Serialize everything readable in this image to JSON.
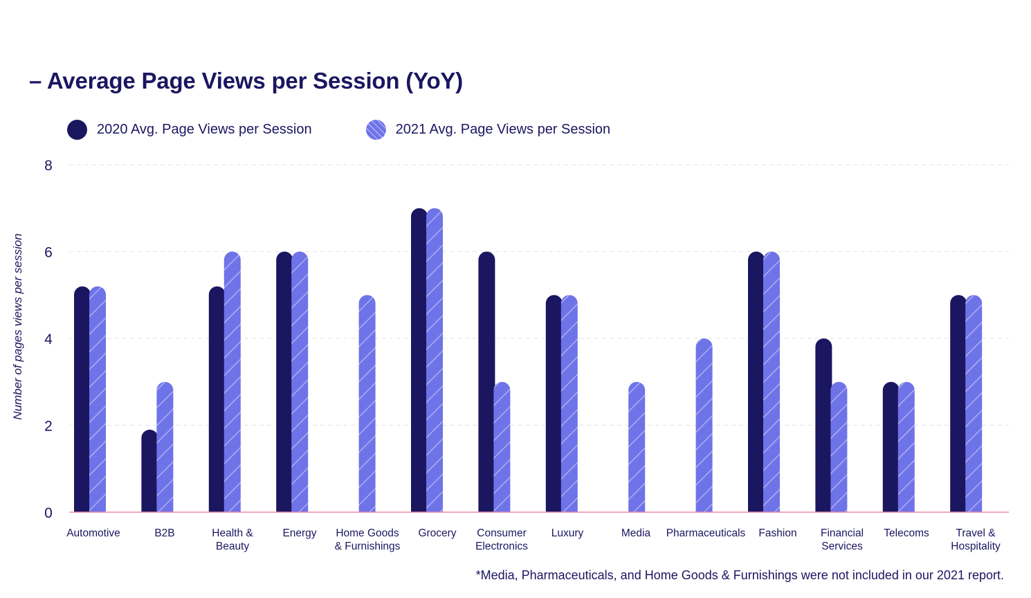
{
  "chart_data": {
    "type": "bar",
    "title": "– Average Page Views per Session (YoY)",
    "ylabel": "Number of pages views per session",
    "xlabel": "",
    "ylim": [
      0,
      8
    ],
    "yticks": [
      0,
      2,
      4,
      6,
      8
    ],
    "categories": [
      "Automotive",
      "B2B",
      "Health & Beauty",
      "Energy",
      "Home Goods & Furnishings",
      "Grocery",
      "Consumer Electronics",
      "Luxury",
      "Media",
      "Pharmaceuticals",
      "Fashion",
      "Financial Services",
      "Telecoms",
      "Travel & Hospitality"
    ],
    "category_label_lines": [
      [
        "Automotive"
      ],
      [
        "B2B"
      ],
      [
        "Health &",
        "Beauty"
      ],
      [
        "Energy"
      ],
      [
        "Home Goods",
        "& Furnishings"
      ],
      [
        "Grocery"
      ],
      [
        "Consumer",
        "Electronics"
      ],
      [
        "Luxury"
      ],
      [
        "Media"
      ],
      [
        "Pharmaceuticals"
      ],
      [
        "Fashion"
      ],
      [
        "Financial",
        "Services"
      ],
      [
        "Telecoms"
      ],
      [
        "Travel &",
        "Hospitality"
      ]
    ],
    "series": [
      {
        "name": "2020 Avg. Page Views per Session",
        "color": "#1b1660",
        "values": [
          5.2,
          1.9,
          5.2,
          6,
          null,
          7,
          6,
          5,
          null,
          null,
          6,
          4,
          3,
          5
        ]
      },
      {
        "name": "2021 Avg. Page Views per Session",
        "color": "#6f73e8",
        "hatch_color": "#a9abf2",
        "values": [
          5.2,
          3,
          6,
          6,
          5,
          7,
          3,
          5,
          3,
          4,
          6,
          3,
          3,
          5
        ]
      }
    ],
    "legend": "top-left",
    "grid": true,
    "footnote": "*Media, Pharmaceuticals, and Home Goods & Furnishings were not included in our 2021 report."
  },
  "colors": {
    "text": "#1b1660",
    "gridline": "#e6e6ee",
    "baseline": "#f08aa3"
  }
}
